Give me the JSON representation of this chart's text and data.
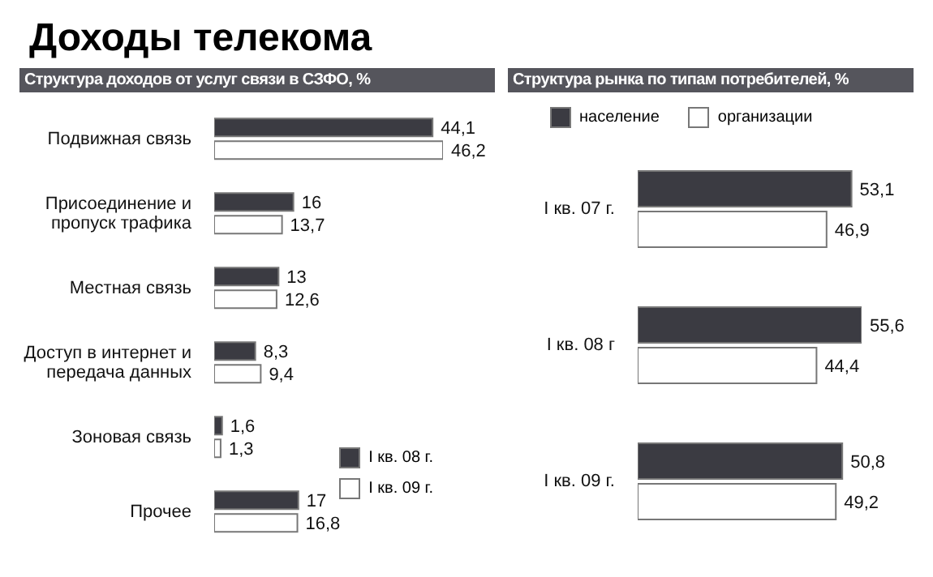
{
  "chart_data": [
    {
      "type": "bar",
      "orientation": "horizontal",
      "title": "Доходы телекома",
      "subtitle": "Структура доходов от услуг связи в СЗФО, %",
      "categories": [
        "Подвижная связь",
        "Присоединение и пропуск трафика",
        "Местная связь",
        "Доступ в интернет и передача данных",
        "Зоновая связь",
        "Прочее"
      ],
      "tick_labels": "y",
      "legend": "bottom right",
      "series": [
        {
          "name": "I кв. 08 г.",
          "color": "#3b3b42",
          "values": [
            44.1,
            16,
            13,
            8.3,
            1.6,
            17
          ],
          "value_labels": [
            "44,1",
            "16",
            "13",
            "8,3",
            "1,6",
            "17"
          ]
        },
        {
          "name": "I кв. 09 г.",
          "color": "#ffffff",
          "values": [
            46.2,
            13.7,
            12.6,
            9.4,
            1.3,
            16.8
          ],
          "value_labels": [
            "46,2",
            "13,7",
            "12,6",
            "9,4",
            "1,3",
            "16,8"
          ]
        }
      ]
    },
    {
      "type": "bar",
      "orientation": "horizontal",
      "title": "Структура рынка по типам потребителей, %",
      "categories": [
        "I кв. 07 г.",
        "I кв. 08 г",
        "I кв. 09 г."
      ],
      "tick_labels": "y",
      "legend": "top",
      "series": [
        {
          "name": "население",
          "color": "#3b3b42",
          "values": [
            53.1,
            55.6,
            50.8
          ],
          "value_labels": [
            "53,1",
            "55,6",
            "50,8"
          ]
        },
        {
          "name": "организации",
          "color": "#ffffff",
          "values": [
            46.9,
            44.4,
            49.2
          ],
          "value_labels": [
            "46,9",
            "44,4",
            "49,2"
          ]
        }
      ]
    }
  ]
}
